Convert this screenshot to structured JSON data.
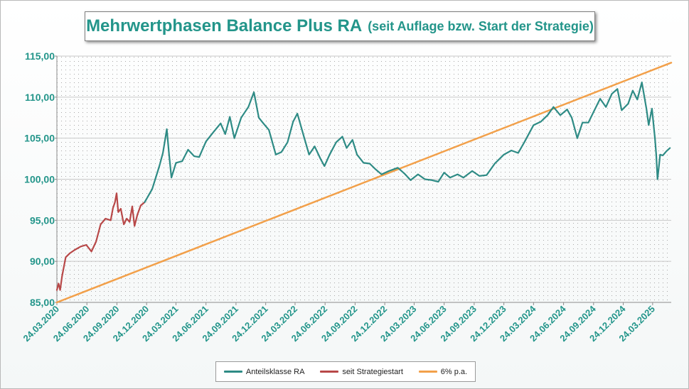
{
  "colors": {
    "accent_teal": "#23958a",
    "series_teal": "#2e8b85",
    "series_red": "#b84848",
    "series_orange": "#f2a04a"
  },
  "title": {
    "main": "Mehrwertphasen Balance Plus RA",
    "sub": "(seit Auflage bzw. Start der Strategie)"
  },
  "chart_data": {
    "type": "line",
    "title": "Mehrwertphasen Balance Plus RA (seit Auflage bzw. Start der Strategie)",
    "xlabel": "",
    "ylabel": "",
    "x_type": "date",
    "xlim": [
      "2020-03-24",
      "2025-05-20"
    ],
    "ylim": [
      85,
      115
    ],
    "grid": true,
    "legend_position": "bottom",
    "y_ticks": [
      "85,00",
      "90,00",
      "95,00",
      "100,00",
      "105,00",
      "110,00",
      "115,00"
    ],
    "y_tick_values": [
      85,
      90,
      95,
      100,
      105,
      110,
      115
    ],
    "x_ticks": [
      "24.03.2020",
      "24.06.2020",
      "24.09.2020",
      "24.12.2020",
      "24.03.2021",
      "24.06.2021",
      "24.09.2021",
      "24.12.2021",
      "24.03.2022",
      "24.06.2022",
      "24.09.2022",
      "24.12.2022",
      "24.03.2023",
      "24.06.2023",
      "24.09.2023",
      "24.12.2023",
      "24.03.2024",
      "24.06.2024",
      "24.09.2024",
      "24.12.2024",
      "24.03.2025"
    ],
    "x_tick_dates": [
      "2020-03-24",
      "2020-06-24",
      "2020-09-24",
      "2020-12-24",
      "2021-03-24",
      "2021-06-24",
      "2021-09-24",
      "2021-12-24",
      "2022-03-24",
      "2022-06-24",
      "2022-09-24",
      "2022-12-24",
      "2023-03-24",
      "2023-06-24",
      "2023-09-24",
      "2023-12-24",
      "2024-03-24",
      "2024-06-24",
      "2024-09-24",
      "2024-12-24",
      "2025-03-24"
    ],
    "series": [
      {
        "name": "Anteilsklasse RA",
        "color": "#2e8b85",
        "points": [
          [
            "2020-12-18",
            97.2
          ],
          [
            "2021-01-10",
            98.8
          ],
          [
            "2021-02-01",
            101.6
          ],
          [
            "2021-02-12",
            103.2
          ],
          [
            "2021-02-24",
            106.1
          ],
          [
            "2021-03-03",
            103.0
          ],
          [
            "2021-03-10",
            100.2
          ],
          [
            "2021-03-24",
            102.0
          ],
          [
            "2021-04-12",
            102.2
          ],
          [
            "2021-04-30",
            103.6
          ],
          [
            "2021-05-19",
            102.8
          ],
          [
            "2021-06-03",
            102.7
          ],
          [
            "2021-06-24",
            104.6
          ],
          [
            "2021-07-18",
            105.8
          ],
          [
            "2021-08-08",
            106.8
          ],
          [
            "2021-08-22",
            105.5
          ],
          [
            "2021-09-05",
            107.6
          ],
          [
            "2021-09-19",
            105.0
          ],
          [
            "2021-10-10",
            107.5
          ],
          [
            "2021-11-01",
            108.8
          ],
          [
            "2021-11-18",
            110.6
          ],
          [
            "2021-12-03",
            107.5
          ],
          [
            "2021-12-17",
            106.8
          ],
          [
            "2022-01-03",
            106.0
          ],
          [
            "2022-01-24",
            103.0
          ],
          [
            "2022-02-10",
            103.3
          ],
          [
            "2022-03-01",
            104.5
          ],
          [
            "2022-03-18",
            107.0
          ],
          [
            "2022-03-31",
            108.0
          ],
          [
            "2022-04-18",
            105.5
          ],
          [
            "2022-05-06",
            103.0
          ],
          [
            "2022-05-23",
            104.0
          ],
          [
            "2022-06-10",
            102.5
          ],
          [
            "2022-06-22",
            101.6
          ],
          [
            "2022-07-08",
            103.0
          ],
          [
            "2022-07-28",
            104.5
          ],
          [
            "2022-08-16",
            105.2
          ],
          [
            "2022-08-29",
            103.8
          ],
          [
            "2022-09-16",
            104.8
          ],
          [
            "2022-09-30",
            103.0
          ],
          [
            "2022-10-20",
            102.0
          ],
          [
            "2022-11-08",
            101.9
          ],
          [
            "2022-11-26",
            101.2
          ],
          [
            "2022-12-14",
            100.6
          ],
          [
            "2023-01-06",
            101.0
          ],
          [
            "2023-02-02",
            101.4
          ],
          [
            "2023-02-22",
            100.7
          ],
          [
            "2023-03-13",
            99.9
          ],
          [
            "2023-04-05",
            100.6
          ],
          [
            "2023-04-26",
            100.0
          ],
          [
            "2023-05-16",
            99.9
          ],
          [
            "2023-06-06",
            99.7
          ],
          [
            "2023-06-24",
            100.8
          ],
          [
            "2023-07-12",
            100.2
          ],
          [
            "2023-08-04",
            100.6
          ],
          [
            "2023-08-22",
            100.2
          ],
          [
            "2023-09-18",
            101.0
          ],
          [
            "2023-10-10",
            100.4
          ],
          [
            "2023-11-01",
            100.5
          ],
          [
            "2023-11-26",
            101.9
          ],
          [
            "2023-12-24",
            103.0
          ],
          [
            "2024-01-16",
            103.5
          ],
          [
            "2024-02-06",
            103.2
          ],
          [
            "2024-02-26",
            104.6
          ],
          [
            "2024-03-24",
            106.6
          ],
          [
            "2024-04-15",
            107.0
          ],
          [
            "2024-05-06",
            107.8
          ],
          [
            "2024-05-24",
            108.8
          ],
          [
            "2024-06-14",
            107.8
          ],
          [
            "2024-07-05",
            108.5
          ],
          [
            "2024-07-19",
            107.5
          ],
          [
            "2024-08-05",
            105.0
          ],
          [
            "2024-08-21",
            106.9
          ],
          [
            "2024-09-08",
            106.9
          ],
          [
            "2024-09-24",
            108.2
          ],
          [
            "2024-10-14",
            109.8
          ],
          [
            "2024-11-01",
            108.8
          ],
          [
            "2024-11-19",
            110.4
          ],
          [
            "2024-12-06",
            111.0
          ],
          [
            "2024-12-19",
            108.4
          ],
          [
            "2025-01-08",
            109.2
          ],
          [
            "2025-01-22",
            110.8
          ],
          [
            "2025-02-05",
            109.7
          ],
          [
            "2025-02-19",
            111.8
          ],
          [
            "2025-03-05",
            108.6
          ],
          [
            "2025-03-12",
            106.6
          ],
          [
            "2025-03-22",
            108.6
          ],
          [
            "2025-03-31",
            105.0
          ],
          [
            "2025-04-04",
            103.0
          ],
          [
            "2025-04-08",
            100.0
          ],
          [
            "2025-04-12",
            101.5
          ],
          [
            "2025-04-16",
            103.0
          ],
          [
            "2025-04-24",
            102.9
          ],
          [
            "2025-05-05",
            103.4
          ],
          [
            "2025-05-16",
            103.8
          ]
        ]
      },
      {
        "name": "seit Strategiestart",
        "color": "#b84848",
        "points": [
          [
            "2020-03-24",
            86.5
          ],
          [
            "2020-03-29",
            87.3
          ],
          [
            "2020-04-03",
            86.5
          ],
          [
            "2020-04-09",
            88.2
          ],
          [
            "2020-04-20",
            90.5
          ],
          [
            "2020-05-03",
            91.0
          ],
          [
            "2020-05-18",
            91.4
          ],
          [
            "2020-06-05",
            91.8
          ],
          [
            "2020-06-22",
            92.0
          ],
          [
            "2020-07-08",
            91.2
          ],
          [
            "2020-07-22",
            92.4
          ],
          [
            "2020-08-05",
            94.5
          ],
          [
            "2020-08-20",
            95.2
          ],
          [
            "2020-09-05",
            95.0
          ],
          [
            "2020-09-12",
            96.5
          ],
          [
            "2020-09-18",
            97.2
          ],
          [
            "2020-09-23",
            98.3
          ],
          [
            "2020-09-28",
            96.0
          ],
          [
            "2020-10-06",
            96.4
          ],
          [
            "2020-10-15",
            94.5
          ],
          [
            "2020-10-24",
            95.2
          ],
          [
            "2020-11-02",
            94.8
          ],
          [
            "2020-11-10",
            96.7
          ],
          [
            "2020-11-17",
            94.3
          ],
          [
            "2020-11-26",
            95.7
          ],
          [
            "2020-12-06",
            96.8
          ],
          [
            "2020-12-18",
            97.2
          ]
        ]
      },
      {
        "name": "6% p.a.",
        "color": "#f2a04a",
        "points": [
          [
            "2020-03-24",
            85.0
          ],
          [
            "2025-05-20",
            114.2
          ]
        ]
      }
    ]
  },
  "legend": [
    {
      "label": "Anteilsklasse RA",
      "color": "#2e8b85"
    },
    {
      "label": "seit Strategiestart",
      "color": "#b84848"
    },
    {
      "label": "6% p.a.",
      "color": "#f2a04a"
    }
  ]
}
